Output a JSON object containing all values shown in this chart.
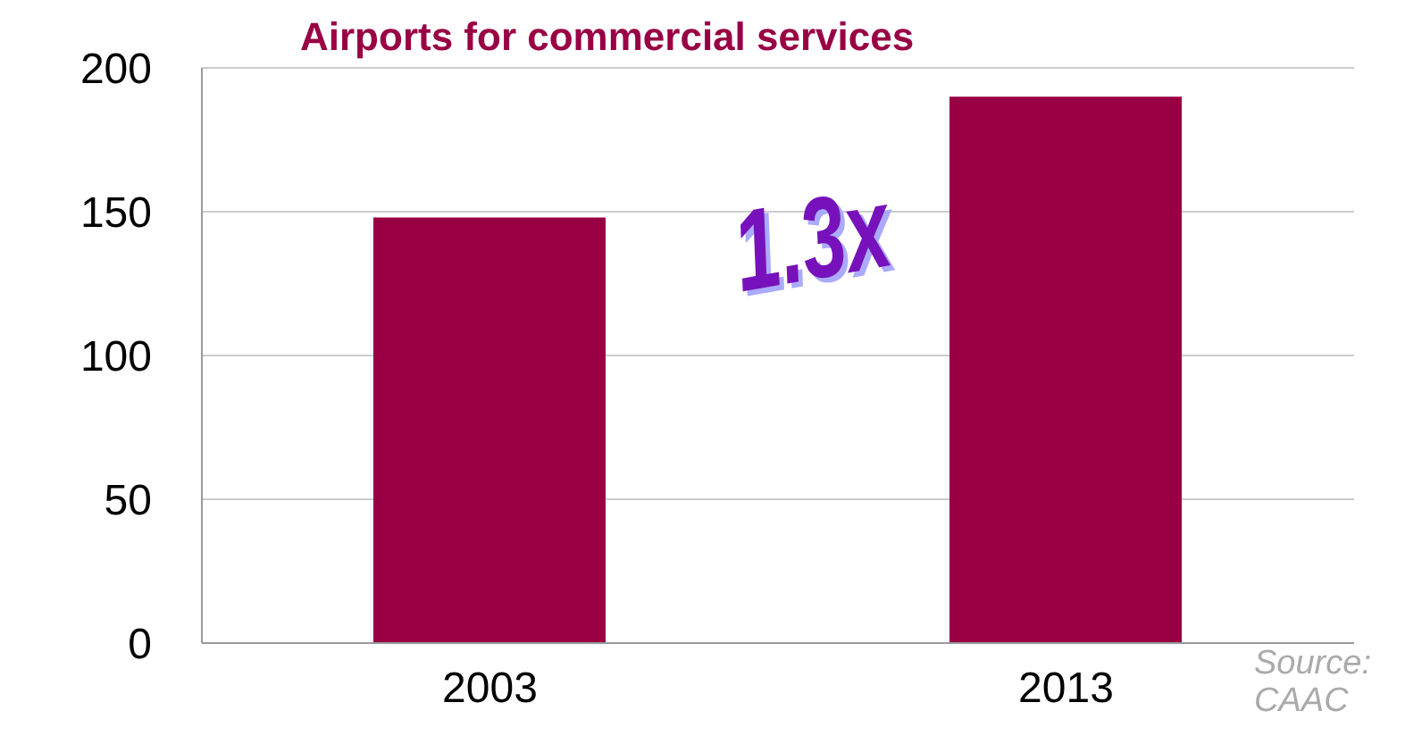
{
  "chart_data": {
    "type": "bar",
    "title": "Airports for commercial services",
    "categories": [
      "2003",
      "2013"
    ],
    "values": [
      148,
      190
    ],
    "color": "#990044",
    "ylim": [
      0,
      200
    ],
    "yticks": [
      0,
      50,
      100,
      150,
      200
    ],
    "grid": "y",
    "annotations": [
      "1.3x",
      "Source: CAAC"
    ]
  }
}
